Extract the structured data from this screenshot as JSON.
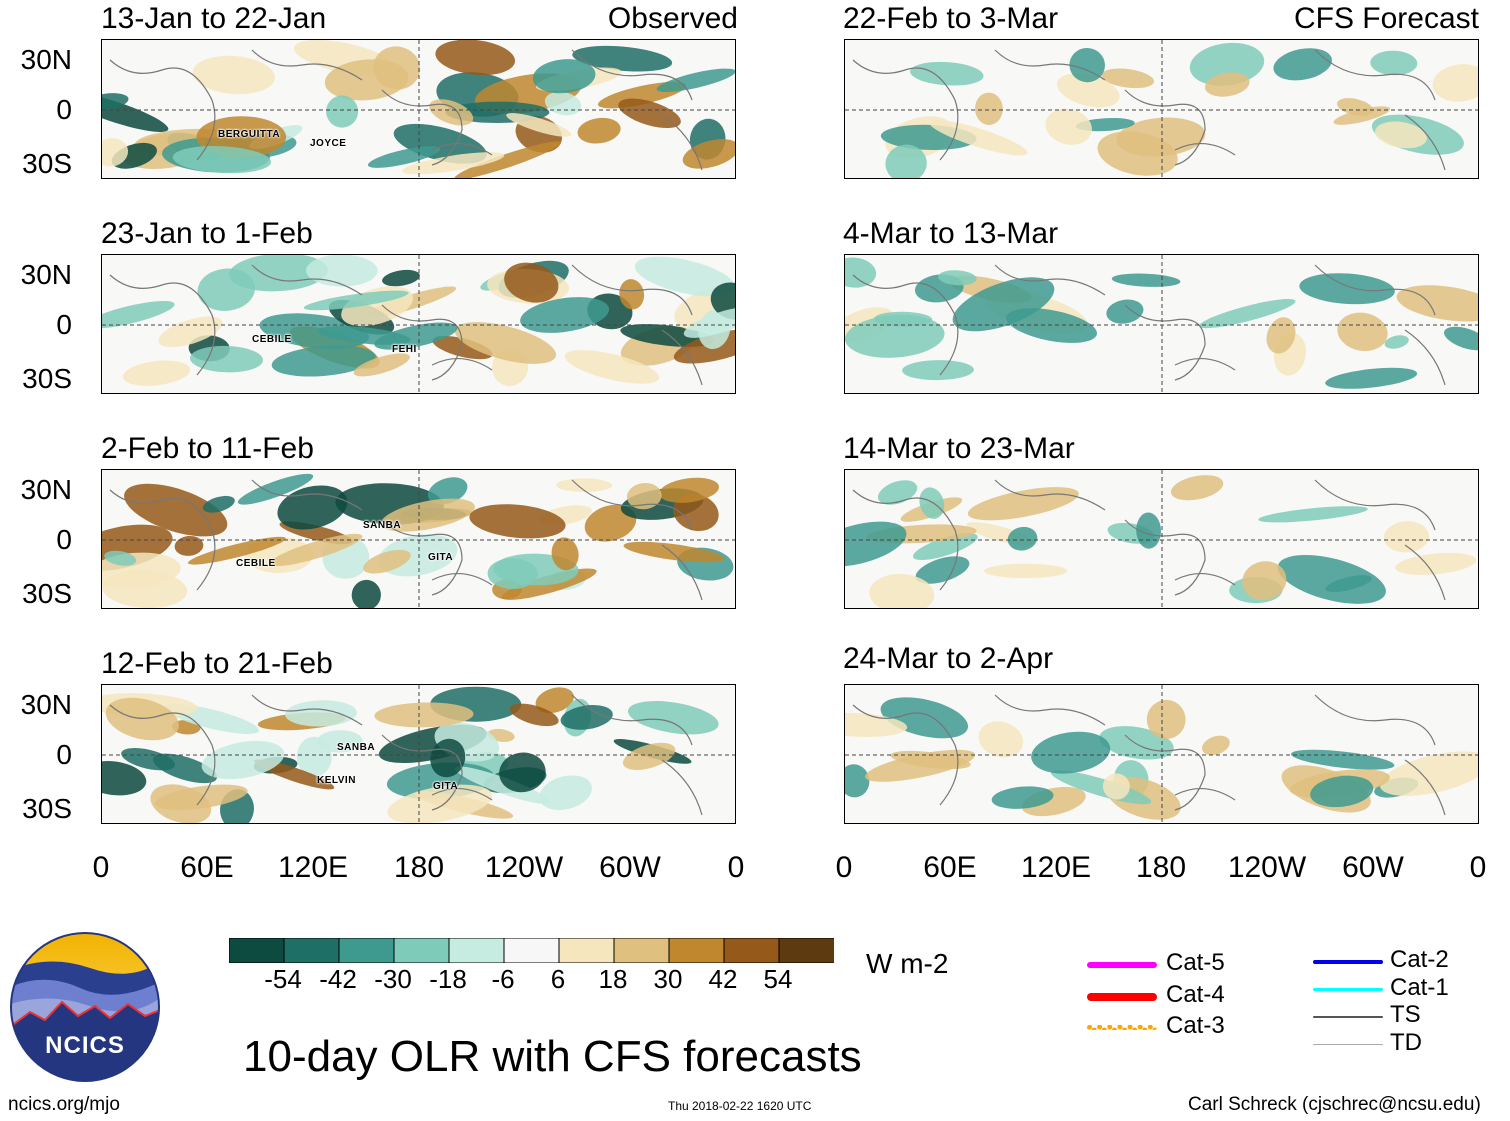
{
  "panels_left": [
    {
      "title": "13-Jan to 22-Jan",
      "tag": "Observed",
      "storms": [
        {
          "name": "BERGUITTA"
        },
        {
          "name": "JOYCE"
        }
      ]
    },
    {
      "title": "23-Jan to 1-Feb",
      "tag": "",
      "storms": [
        {
          "name": "CEBILE"
        },
        {
          "name": "FEHI"
        }
      ]
    },
    {
      "title": "2-Feb to 11-Feb",
      "tag": "",
      "storms": [
        {
          "name": "SANBA"
        },
        {
          "name": "CEBILE"
        },
        {
          "name": "GITA"
        }
      ]
    },
    {
      "title": "12-Feb to 21-Feb",
      "tag": "",
      "storms": [
        {
          "name": "SANBA"
        },
        {
          "name": "KELVIN"
        },
        {
          "name": "GITA"
        }
      ]
    }
  ],
  "panels_right": [
    {
      "title": "22-Feb to 3-Mar",
      "tag": "CFS Forecast"
    },
    {
      "title": "4-Mar to 13-Mar",
      "tag": ""
    },
    {
      "title": "14-Mar to 23-Mar",
      "tag": ""
    },
    {
      "title": "24-Mar to 2-Apr",
      "tag": ""
    }
  ],
  "lat_labels": [
    "30N",
    "0",
    "30S"
  ],
  "lon_labels": [
    "0",
    "60E",
    "120E",
    "180",
    "120W",
    "60W",
    "0"
  ],
  "colorbar": {
    "colors": [
      "#0d4a40",
      "#1e6f66",
      "#3e9a8f",
      "#7fcbba",
      "#c6ebe0",
      "#f7f7f7",
      "#f6e6be",
      "#dfc07f",
      "#c0872f",
      "#95591a",
      "#5d3a0f"
    ],
    "labels": [
      "-54",
      "-42",
      "-30",
      "-18",
      "-6",
      "6",
      "18",
      "30",
      "42",
      "54"
    ],
    "units": "W m-2"
  },
  "legend": {
    "left": [
      {
        "label": "Cat-5",
        "color": "#ff00ff"
      },
      {
        "label": "Cat-4",
        "color": "#ff0000"
      },
      {
        "label": "Cat-3",
        "color": "#ffa500"
      }
    ],
    "right": [
      {
        "label": "Cat-2",
        "color": "#0000ee"
      },
      {
        "label": "Cat-1",
        "color": "#00ffff"
      },
      {
        "label": "TS",
        "color": "#555555"
      },
      {
        "label": "TD",
        "color": "#aaaaaa"
      }
    ]
  },
  "logo": {
    "text": "NCICS"
  },
  "main_title": "10-day OLR with CFS forecasts",
  "footer": {
    "url": "ncics.org/mjo",
    "timestamp": "Thu 2018-02-22 1620 UTC",
    "credit": "Carl Schreck (cjschrec@ncsu.edu)"
  }
}
